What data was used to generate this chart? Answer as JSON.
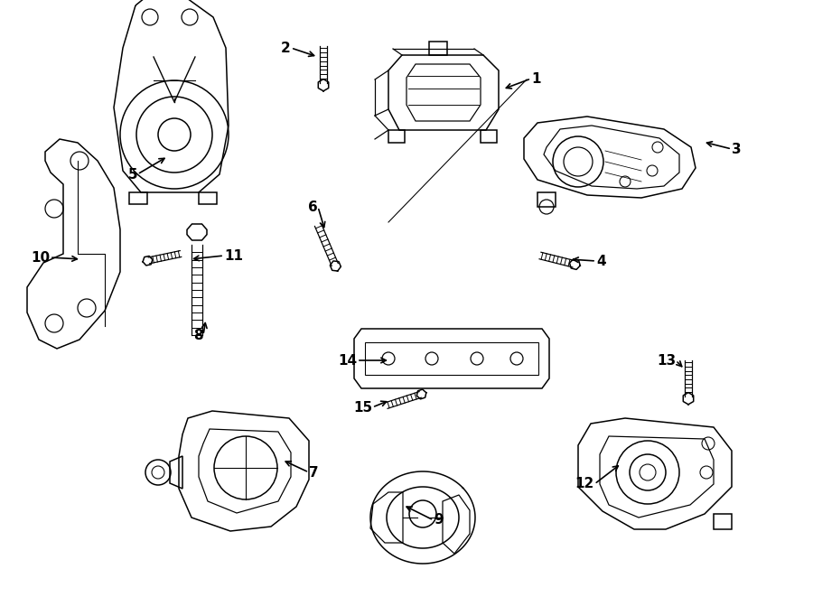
{
  "bg_color": "#ffffff",
  "line_color": "#000000",
  "lw": 1.1,
  "fig_width": 9.0,
  "fig_height": 6.61,
  "xlim": [
    0,
    900
  ],
  "ylim": [
    0,
    661
  ]
}
